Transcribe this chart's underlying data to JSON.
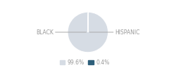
{
  "slices": [
    99.6,
    0.4
  ],
  "labels": [
    "BLACK",
    "HISPANIC"
  ],
  "colors": [
    "#d6dce4",
    "#2e5f7a"
  ],
  "legend_labels": [
    "99.6%",
    "0.4%"
  ],
  "label_color": "#999999",
  "line_color": "#aaaaaa",
  "font_size": 5.5,
  "startangle": 90,
  "wedge_edge_color": "#ffffff",
  "bg_color": "#ffffff"
}
